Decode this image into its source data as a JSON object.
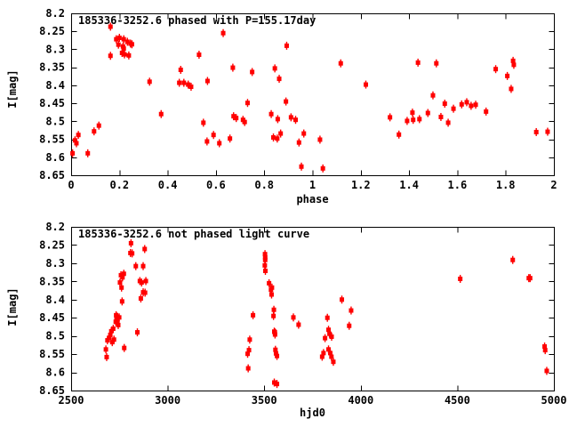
{
  "figure": {
    "background_color": "#ffffff",
    "axis_color": "#000000",
    "text_color": "#000000",
    "point_color": "#ff0000"
  },
  "chart_data": [
    {
      "id": "phased",
      "type": "scatter",
      "title": "185336-3252.6 phased with P=155.17day",
      "xlabel": "phase",
      "ylabel": "I[mag]",
      "xlim": [
        0,
        2
      ],
      "ylim": [
        8.2,
        8.65
      ],
      "y_axis_inverted_magnitudes": true,
      "grid": false,
      "legend": "none",
      "marker": {
        "shape": "filled-square",
        "color": "#ff0000",
        "errorbars": true,
        "errorbar_mag": 0.01
      },
      "xticks": {
        "values": [
          0,
          0.2,
          0.4,
          0.6,
          0.8,
          1,
          1.2,
          1.4,
          1.6,
          1.8,
          2
        ],
        "labels": [
          "0",
          "0.2",
          "0.4",
          "0.6",
          "0.8",
          "1",
          "1.2",
          "1.4",
          "1.6",
          "1.8",
          "2"
        ]
      },
      "yticks": {
        "values": [
          8.2,
          8.25,
          8.3,
          8.35,
          8.4,
          8.45,
          8.5,
          8.55,
          8.6,
          8.65
        ],
        "labels": [
          "8.2",
          "8.25",
          "8.3",
          "8.35",
          "8.4",
          "8.45",
          "8.5",
          "8.55",
          "8.6",
          "8.65"
        ]
      },
      "points": [
        [
          0.006,
          8.589
        ],
        [
          0.016,
          8.553
        ],
        [
          0.022,
          8.561
        ],
        [
          0.03,
          8.538
        ],
        [
          0.069,
          8.589
        ],
        [
          0.095,
          8.528
        ],
        [
          0.115,
          8.512
        ],
        [
          0.163,
          8.237
        ],
        [
          0.163,
          8.318
        ],
        [
          0.187,
          8.272
        ],
        [
          0.196,
          8.287
        ],
        [
          0.2,
          8.268
        ],
        [
          0.211,
          8.31
        ],
        [
          0.215,
          8.292
        ],
        [
          0.218,
          8.272
        ],
        [
          0.218,
          8.298
        ],
        [
          0.221,
          8.314
        ],
        [
          0.233,
          8.279
        ],
        [
          0.239,
          8.317
        ],
        [
          0.246,
          8.284
        ],
        [
          0.252,
          8.286
        ],
        [
          0.325,
          8.39
        ],
        [
          0.373,
          8.48
        ],
        [
          0.448,
          8.393
        ],
        [
          0.454,
          8.357
        ],
        [
          0.467,
          8.393
        ],
        [
          0.485,
          8.398
        ],
        [
          0.497,
          8.404
        ],
        [
          0.53,
          8.315
        ],
        [
          0.548,
          8.504
        ],
        [
          0.563,
          8.556
        ],
        [
          0.565,
          8.388
        ],
        [
          0.59,
          8.538
        ],
        [
          0.614,
          8.561
        ],
        [
          0.63,
          8.255
        ],
        [
          0.658,
          8.548
        ],
        [
          0.67,
          8.351
        ],
        [
          0.673,
          8.486
        ],
        [
          0.684,
          8.491
        ],
        [
          0.712,
          8.496
        ],
        [
          0.719,
          8.502
        ],
        [
          0.731,
          8.449
        ],
        [
          0.75,
          8.363
        ],
        [
          0.829,
          8.48
        ],
        [
          0.838,
          8.545
        ],
        [
          0.844,
          8.353
        ],
        [
          0.854,
          8.548
        ],
        [
          0.856,
          8.494
        ],
        [
          0.862,
          8.382
        ],
        [
          0.868,
          8.534
        ],
        [
          0.89,
          8.445
        ],
        [
          0.893,
          8.29
        ],
        [
          0.911,
          8.489
        ],
        [
          0.93,
          8.496
        ],
        [
          0.944,
          8.559
        ],
        [
          0.954,
          8.626
        ],
        [
          0.964,
          8.534
        ],
        [
          1.031,
          8.551
        ],
        [
          1.043,
          8.631
        ],
        [
          1.117,
          8.339
        ],
        [
          1.221,
          8.398
        ],
        [
          1.321,
          8.489
        ],
        [
          1.358,
          8.537
        ],
        [
          1.392,
          8.499
        ],
        [
          1.414,
          8.476
        ],
        [
          1.417,
          8.496
        ],
        [
          1.437,
          8.337
        ],
        [
          1.443,
          8.494
        ],
        [
          1.478,
          8.477
        ],
        [
          1.499,
          8.428
        ],
        [
          1.513,
          8.339
        ],
        [
          1.532,
          8.488
        ],
        [
          1.548,
          8.451
        ],
        [
          1.562,
          8.504
        ],
        [
          1.584,
          8.465
        ],
        [
          1.618,
          8.453
        ],
        [
          1.639,
          8.447
        ],
        [
          1.657,
          8.457
        ],
        [
          1.676,
          8.454
        ],
        [
          1.719,
          8.473
        ],
        [
          1.759,
          8.355
        ],
        [
          1.807,
          8.374
        ],
        [
          1.823,
          8.41
        ],
        [
          1.831,
          8.332
        ],
        [
          1.834,
          8.343
        ],
        [
          1.927,
          8.53
        ],
        [
          1.974,
          8.529
        ]
      ]
    },
    {
      "id": "unphased",
      "type": "scatter",
      "title": "185336-3252.6 not phased light curve",
      "xlabel": "hjd0",
      "ylabel": "I[mag]",
      "xlim": [
        2500,
        5000
      ],
      "ylim": [
        8.2,
        8.65
      ],
      "y_axis_inverted_magnitudes": true,
      "grid": false,
      "legend": "none",
      "marker": {
        "shape": "filled-square",
        "color": "#ff0000",
        "errorbars": true,
        "errorbar_mag": 0.01
      },
      "xticks": {
        "values": [
          2500,
          3000,
          3500,
          4000,
          4500,
          5000
        ],
        "labels": [
          "2500",
          "3000",
          "3500",
          "4000",
          "4500",
          "5000"
        ]
      },
      "yticks": {
        "values": [
          8.2,
          8.25,
          8.3,
          8.35,
          8.4,
          8.45,
          8.5,
          8.55,
          8.6,
          8.65
        ],
        "labels": [
          "8.2",
          "8.25",
          "8.3",
          "8.35",
          "8.4",
          "8.45",
          "8.5",
          "8.55",
          "8.6",
          "8.65"
        ]
      },
      "points": [
        [
          2680,
          8.537
        ],
        [
          2684,
          8.558
        ],
        [
          2688,
          8.512
        ],
        [
          2697,
          8.505
        ],
        [
          2703,
          8.497
        ],
        [
          2708,
          8.487
        ],
        [
          2713,
          8.517
        ],
        [
          2718,
          8.48
        ],
        [
          2722,
          8.51
        ],
        [
          2731,
          8.461
        ],
        [
          2733,
          8.443
        ],
        [
          2735,
          8.455
        ],
        [
          2738,
          8.447
        ],
        [
          2740,
          8.462
        ],
        [
          2744,
          8.47
        ],
        [
          2749,
          8.449
        ],
        [
          2753,
          8.353
        ],
        [
          2758,
          8.333
        ],
        [
          2761,
          8.367
        ],
        [
          2764,
          8.405
        ],
        [
          2766,
          8.339
        ],
        [
          2773,
          8.329
        ],
        [
          2775,
          8.533
        ],
        [
          2807,
          8.272
        ],
        [
          2810,
          8.245
        ],
        [
          2816,
          8.273
        ],
        [
          2835,
          8.308
        ],
        [
          2843,
          8.49
        ],
        [
          2856,
          8.349
        ],
        [
          2861,
          8.397
        ],
        [
          2865,
          8.353
        ],
        [
          2873,
          8.308
        ],
        [
          2873,
          8.38
        ],
        [
          2881,
          8.261
        ],
        [
          2883,
          8.381
        ],
        [
          2887,
          8.349
        ],
        [
          3414,
          8.549
        ],
        [
          3417,
          8.589
        ],
        [
          3421,
          8.539
        ],
        [
          3425,
          8.51
        ],
        [
          3442,
          8.443
        ],
        [
          3503,
          8.306
        ],
        [
          3504,
          8.275
        ],
        [
          3505,
          8.284
        ],
        [
          3505,
          8.291
        ],
        [
          3506,
          8.321
        ],
        [
          3525,
          8.355
        ],
        [
          3535,
          8.373
        ],
        [
          3538,
          8.386
        ],
        [
          3540,
          8.367
        ],
        [
          3548,
          8.445
        ],
        [
          3550,
          8.428
        ],
        [
          3552,
          8.488
        ],
        [
          3552,
          8.628
        ],
        [
          3555,
          8.49
        ],
        [
          3556,
          8.496
        ],
        [
          3558,
          8.538
        ],
        [
          3561,
          8.548
        ],
        [
          3566,
          8.555
        ],
        [
          3566,
          8.632
        ],
        [
          3651,
          8.449
        ],
        [
          3678,
          8.469
        ],
        [
          3800,
          8.557
        ],
        [
          3807,
          8.547
        ],
        [
          3815,
          8.506
        ],
        [
          3827,
          8.45
        ],
        [
          3833,
          8.483
        ],
        [
          3833,
          8.537
        ],
        [
          3838,
          8.494
        ],
        [
          3842,
          8.547
        ],
        [
          3848,
          8.557
        ],
        [
          3849,
          8.502
        ],
        [
          3858,
          8.571
        ],
        [
          3902,
          8.4
        ],
        [
          3940,
          8.472
        ],
        [
          3950,
          8.43
        ],
        [
          4515,
          8.343
        ],
        [
          4787,
          8.291
        ],
        [
          4870,
          8.341
        ],
        [
          4877,
          8.341
        ],
        [
          4952,
          8.529
        ],
        [
          4955,
          8.539
        ],
        [
          4963,
          8.596
        ]
      ]
    }
  ]
}
